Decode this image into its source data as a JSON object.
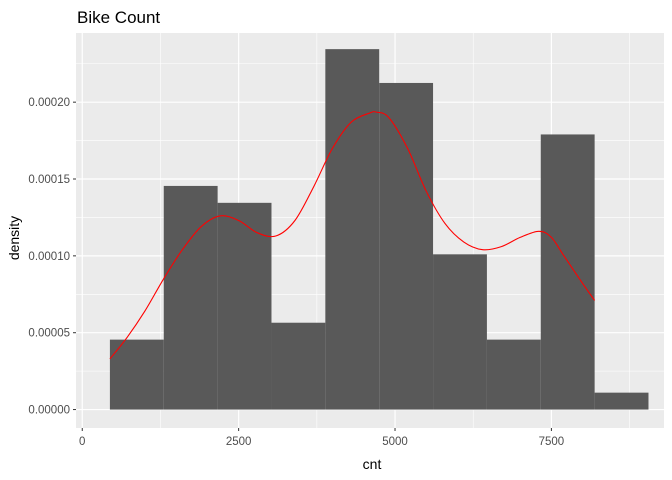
{
  "chart_data": {
    "type": "bar",
    "title": "Bike Count",
    "xlabel": "cnt",
    "ylabel": "density",
    "xlim": [
      -100,
      9300
    ],
    "ylim": [
      -1.2e-05,
      0.000245
    ],
    "x_ticks": [
      0,
      2500,
      5000,
      7500
    ],
    "x_tick_labels": [
      "0",
      "2500",
      "5000",
      "7500"
    ],
    "y_ticks": [
      0,
      5e-05,
      0.0001,
      0.00015,
      0.0002
    ],
    "y_tick_labels": [
      "0.00000",
      "0.00005",
      "0.00010",
      "0.00015",
      "0.00020"
    ],
    "grid": true,
    "colors": {
      "panel_background": "#ebebeb",
      "grid_line": "#ffffff",
      "bar_fill": "#595959",
      "density_line": "#ff0000"
    },
    "bins": [
      {
        "x0": 442,
        "x1": 1303,
        "density": 4.55e-05
      },
      {
        "x0": 1303,
        "x1": 2164,
        "density": 0.0001455
      },
      {
        "x0": 2164,
        "x1": 3025,
        "density": 0.0001345
      },
      {
        "x0": 3025,
        "x1": 3886,
        "density": 5.65e-05
      },
      {
        "x0": 3886,
        "x1": 4747,
        "density": 0.0002345
      },
      {
        "x0": 4747,
        "x1": 5608,
        "density": 0.0002125
      },
      {
        "x0": 5608,
        "x1": 6469,
        "density": 0.000101
      },
      {
        "x0": 6469,
        "x1": 7330,
        "density": 4.55e-05
      },
      {
        "x0": 7330,
        "x1": 8191,
        "density": 0.000179
      },
      {
        "x0": 8191,
        "x1": 9052,
        "density": 1.1e-05
      }
    ],
    "density_curve": {
      "x": [
        442,
        700,
        1000,
        1300,
        1600,
        1900,
        2200,
        2500,
        2800,
        3100,
        3400,
        3700,
        4000,
        4300,
        4600,
        4700,
        4900,
        5200,
        5500,
        5800,
        6100,
        6400,
        6700,
        7000,
        7300,
        7500,
        7700,
        8000,
        8191
      ],
      "y": [
        3.3e-05,
        4.6e-05,
        6.4e-05,
        8.5e-05,
        0.000104,
        0.000119,
        0.000126,
        0.000123,
        0.000115,
        0.000113,
        0.000123,
        0.000145,
        0.00017,
        0.000187,
        0.000193,
        0.0001935,
        0.00019,
        0.00017,
        0.000142,
        0.000121,
        0.000109,
        0.000104,
        0.000106,
        0.000112,
        0.000116,
        0.000112,
        0.0001,
        8.2e-05,
        7.1e-05
      ]
    }
  }
}
